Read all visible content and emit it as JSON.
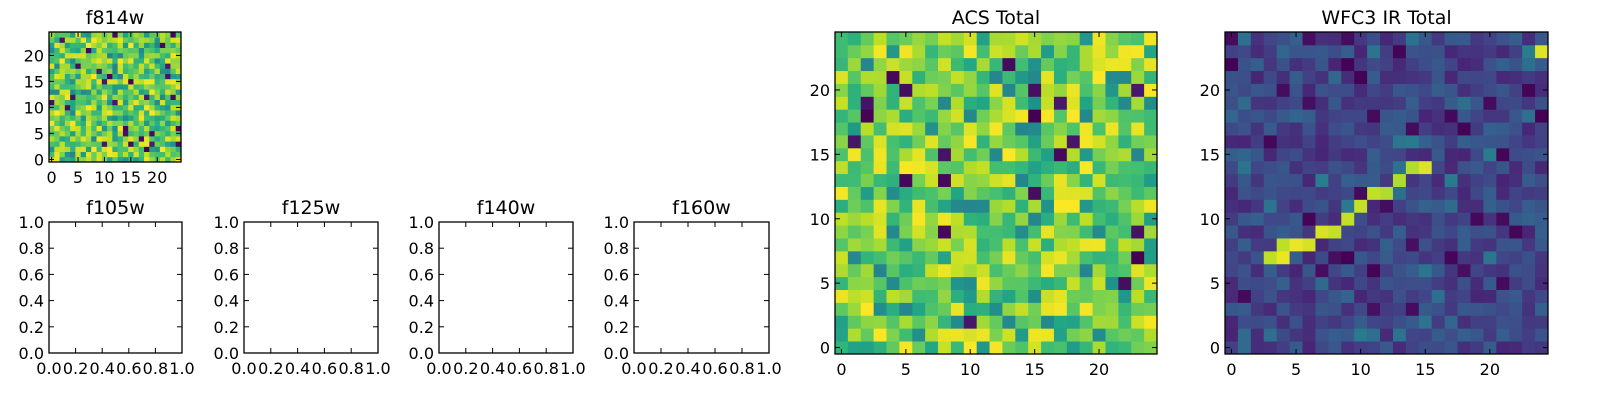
{
  "chart_data": [
    {
      "type": "heatmap",
      "title": "f814w",
      "grid_size": 25,
      "colormap": "viridis",
      "xlim": [
        -0.5,
        24.5
      ],
      "ylim": [
        -0.5,
        24.5
      ],
      "xticks": [
        "0",
        "5",
        "10",
        "15",
        "20"
      ],
      "yticks": [
        "0",
        "5",
        "10",
        "15",
        "20"
      ],
      "note": "noise field, pixel values not individually legible"
    },
    {
      "type": "empty",
      "title": "f105w",
      "xlim": [
        0,
        1
      ],
      "ylim": [
        0,
        1
      ],
      "xticks": [
        "0.0",
        "0.2",
        "0.4",
        "0.6",
        "0.8",
        "1.0"
      ],
      "yticks": [
        "0.0",
        "0.2",
        "0.4",
        "0.6",
        "0.8",
        "1.0"
      ]
    },
    {
      "type": "empty",
      "title": "f125w",
      "xlim": [
        0,
        1
      ],
      "ylim": [
        0,
        1
      ],
      "xticks": [
        "0.0",
        "0.2",
        "0.4",
        "0.6",
        "0.8",
        "1.0"
      ],
      "yticks": [
        "0.0",
        "0.2",
        "0.4",
        "0.6",
        "0.8",
        "1.0"
      ]
    },
    {
      "type": "empty",
      "title": "f140w",
      "xlim": [
        0,
        1
      ],
      "ylim": [
        0,
        1
      ],
      "xticks": [
        "0.0",
        "0.2",
        "0.4",
        "0.6",
        "0.8",
        "1.0"
      ],
      "yticks": [
        "0.0",
        "0.2",
        "0.4",
        "0.6",
        "0.8",
        "1.0"
      ]
    },
    {
      "type": "empty",
      "title": "f160w",
      "xlim": [
        0,
        1
      ],
      "ylim": [
        0,
        1
      ],
      "xticks": [
        "0.0",
        "0.2",
        "0.4",
        "0.6",
        "0.8",
        "1.0"
      ],
      "yticks": [
        "0.0",
        "0.2",
        "0.4",
        "0.6",
        "0.8",
        "1.0"
      ]
    },
    {
      "type": "heatmap",
      "title": "ACS Total",
      "grid_size": 25,
      "colormap": "viridis",
      "xlim": [
        -0.5,
        24.5
      ],
      "ylim": [
        -0.5,
        24.5
      ],
      "xticks": [
        "0",
        "5",
        "10",
        "15",
        "20"
      ],
      "yticks": [
        "0",
        "5",
        "10",
        "15",
        "20"
      ],
      "note": "noise field, mostly green-yellow with a few dark cells"
    },
    {
      "type": "heatmap",
      "title": "WFC3 IR Total",
      "grid_size": 25,
      "colormap": "viridis",
      "xlim": [
        -0.5,
        24.5
      ],
      "ylim": [
        -0.5,
        24.5
      ],
      "xticks": [
        "0",
        "5",
        "10",
        "15",
        "20"
      ],
      "yticks": [
        "0",
        "5",
        "10",
        "15",
        "20"
      ],
      "note": "dark noise background with a bright diagonal streak",
      "streak": [
        [
          3,
          7
        ],
        [
          4,
          7
        ],
        [
          4,
          8
        ],
        [
          5,
          8
        ],
        [
          6,
          8
        ],
        [
          7,
          9
        ],
        [
          8,
          9
        ],
        [
          9,
          10
        ],
        [
          10,
          11
        ],
        [
          11,
          12
        ],
        [
          12,
          12
        ],
        [
          13,
          13
        ],
        [
          14,
          14
        ],
        [
          15,
          14
        ],
        [
          24,
          23
        ]
      ]
    }
  ]
}
